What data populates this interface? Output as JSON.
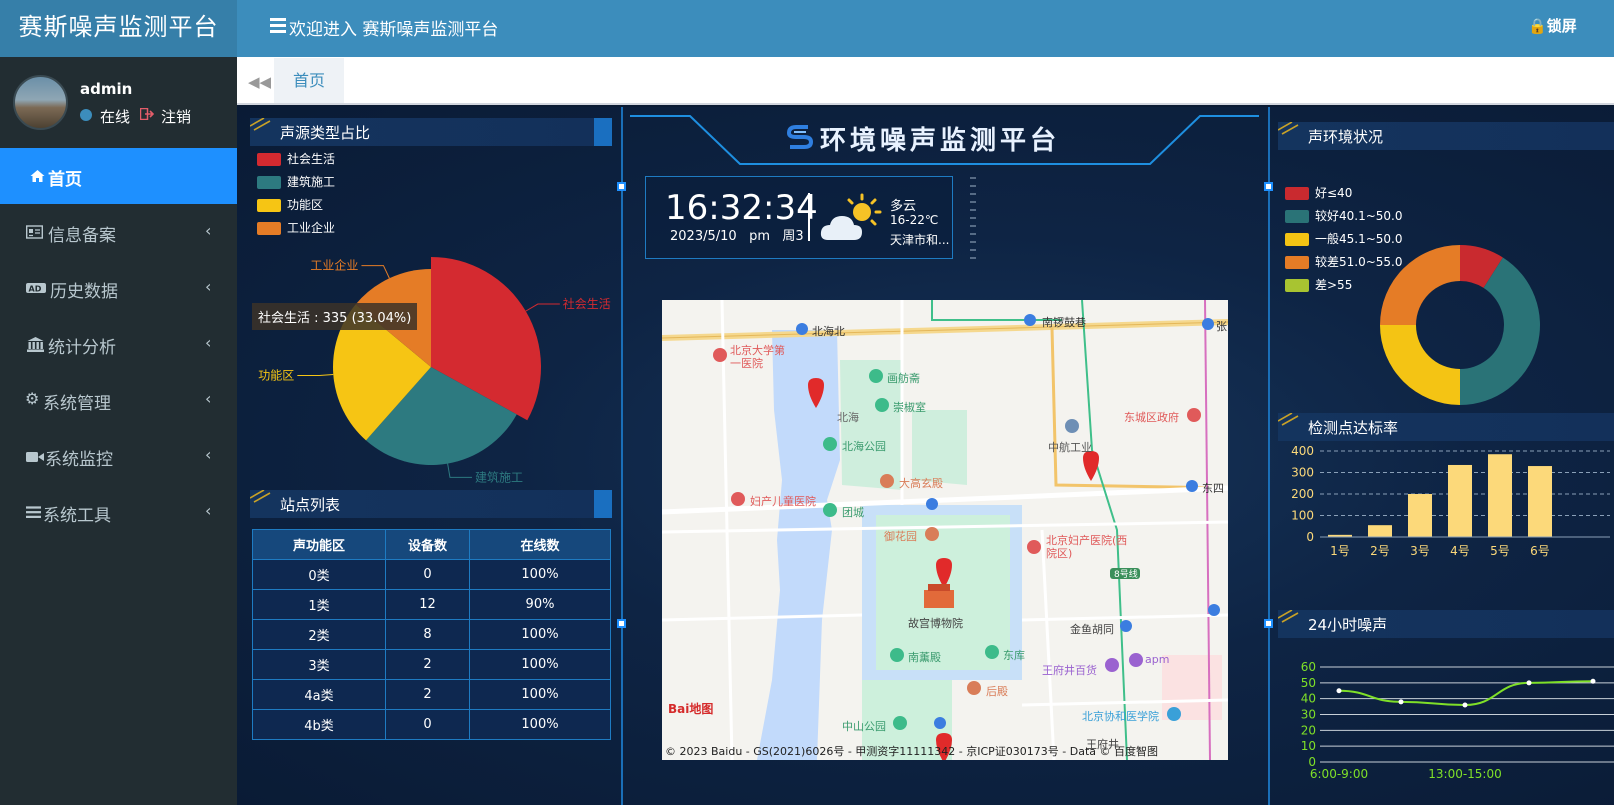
{
  "brand": "赛斯噪声监测平台",
  "top": {
    "welcome": "欢迎进入 赛斯噪声监测平台",
    "lock": "锁屏"
  },
  "user": {
    "name": "admin",
    "status": "在线",
    "logout": "注销"
  },
  "nav": [
    {
      "label": "首页",
      "icon": "home-icon"
    },
    {
      "label": "信息备案",
      "icon": "id-card-icon"
    },
    {
      "label": "历史数据",
      "icon": "ad-icon"
    },
    {
      "label": "统计分析",
      "icon": "bank-icon"
    },
    {
      "label": "系统管理",
      "icon": "gear-icon"
    },
    {
      "label": "系统监控",
      "icon": "video-camera-icon"
    },
    {
      "label": "系统工具",
      "icon": "list-icon"
    }
  ],
  "tabs": {
    "home": "首页"
  },
  "panels": {
    "source": "声源类型占比",
    "stations": "站点列表",
    "env": "声环境状况",
    "rate": "检测点达标率",
    "noise24": "24小时噪声"
  },
  "center": {
    "title": "环境噪声监测平台",
    "time": "16:32:34",
    "date": "2023/5/10",
    "ampm": "pm",
    "weekday": "周3",
    "weather": "多云",
    "temp": "16-22℃",
    "city": "天津市和..."
  },
  "pie": {
    "legend": [
      "社会生活",
      "建筑施工",
      "功能区",
      "工业企业"
    ],
    "colors": [
      "#d42a30",
      "#2d7a80",
      "#f6c514",
      "#e57c26"
    ],
    "slices": [
      {
        "name": "社会生活",
        "pct": 33.04
      },
      {
        "name": "建筑施工",
        "pct": 28.5
      },
      {
        "name": "功能区",
        "pct": 24.5
      },
      {
        "name": "工业企业",
        "pct": 13.96
      }
    ],
    "tooltip": "社会生活 : 335 (33.04%)"
  },
  "stations": {
    "headers": [
      "声功能区",
      "设备数",
      "在线数"
    ],
    "rows": [
      [
        "0类",
        "0",
        "100%"
      ],
      [
        "1类",
        "12",
        "90%"
      ],
      [
        "2类",
        "8",
        "100%"
      ],
      [
        "3类",
        "2",
        "100%"
      ],
      [
        "4a类",
        "2",
        "100%"
      ],
      [
        "4b类",
        "0",
        "100%"
      ]
    ]
  },
  "donut": {
    "legend": [
      "好≤40",
      "较好40.1~50.0",
      "一般45.1~50.0",
      "较差51.0~55.0",
      "差>55"
    ],
    "colors": [
      "#c92a2f",
      "#2a7377",
      "#f4c414",
      "#e57c26",
      "#a8c431"
    ],
    "values": [
      9,
      41,
      25,
      25,
      0
    ]
  },
  "chart_data": [
    {
      "type": "bar",
      "categories": [
        "1号",
        "2号",
        "3号",
        "4号",
        "5号",
        "6号"
      ],
      "values": [
        10,
        55,
        200,
        335,
        385,
        330
      ],
      "ylim": [
        0,
        400
      ],
      "yticks": [
        "0",
        "100",
        "200",
        "300",
        "400"
      ],
      "color": "#fcd97a"
    },
    {
      "type": "line",
      "x": [
        "6:00-9:00",
        "9:00-13:00",
        "13:00-15:00",
        "15:00-18:00",
        "18:00-21:00"
      ],
      "xticks": [
        "6:00-9:00",
        "13:00-15:00"
      ],
      "values": [
        45,
        38,
        36,
        50,
        51
      ],
      "ylim": [
        0,
        60
      ],
      "yticks": [
        "0",
        "10",
        "20",
        "30",
        "40",
        "50",
        "60"
      ],
      "color": "#7fe028"
    }
  ],
  "map": {
    "labels": [
      "北海北",
      "南锣鼓巷",
      "北京大学第一医院",
      "画舫斋",
      "崇椒室",
      "北海",
      "北海公园",
      "东城区政府",
      "中航工业",
      "大高玄殿",
      "妇产儿童医院",
      "团城",
      "御花园",
      "北京妇产医院(西院区)",
      "东四",
      "故宫博物院",
      "8号线",
      "金鱼胡同",
      "南薰殿",
      "东库",
      "王府井百货",
      "apm",
      "后殿",
      "北京协和医学院",
      "中山公园",
      "王府井",
      "张"
    ],
    "credit": "© 2023 Baidu - GS(2021)6026号 - 甲测资字11111342 - 京ICP证030173号 - Data © 百度智图",
    "logo": "Bai地图"
  }
}
